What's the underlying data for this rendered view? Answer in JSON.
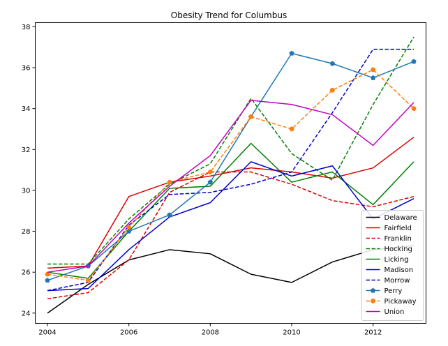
{
  "chart_data": {
    "type": "line",
    "title": "Obesity Trend for Columbus",
    "xlabel": "",
    "ylabel": "",
    "xlim": [
      2003.7,
      2013.3
    ],
    "ylim": [
      23.5,
      38.2
    ],
    "x_ticks": [
      2004,
      2006,
      2008,
      2010,
      2012
    ],
    "y_ticks": [
      24,
      26,
      28,
      30,
      32,
      34,
      36,
      38
    ],
    "grid": false,
    "legend_position": "lower-right",
    "x": [
      2004,
      2005,
      2006,
      2007,
      2008,
      2009,
      2010,
      2011,
      2012,
      2013
    ],
    "series": [
      {
        "name": "Delaware",
        "color": "#000000",
        "dash": "solid",
        "marker": "none",
        "values": [
          24.0,
          25.4,
          26.6,
          27.1,
          26.9,
          25.9,
          25.5,
          26.5,
          27.1,
          27.3
        ]
      },
      {
        "name": "Fairfield",
        "color": "#dd0000",
        "dash": "solid",
        "marker": "none",
        "values": [
          26.2,
          26.3,
          29.7,
          30.4,
          30.7,
          31.1,
          30.9,
          30.6,
          31.1,
          32.6
        ]
      },
      {
        "name": "Franklin",
        "color": "#dd0000",
        "dash": "dashed",
        "marker": "none",
        "values": [
          24.7,
          25.0,
          26.6,
          29.9,
          30.9,
          30.9,
          30.3,
          29.5,
          29.2,
          29.7
        ]
      },
      {
        "name": "Hocking",
        "color": "#008000",
        "dash": "dashed",
        "marker": "none",
        "values": [
          26.4,
          26.4,
          28.6,
          30.3,
          31.3,
          34.5,
          31.8,
          30.5,
          34.2,
          37.5
        ]
      },
      {
        "name": "Licking",
        "color": "#008000",
        "dash": "solid",
        "marker": "none",
        "values": [
          26.0,
          25.7,
          28.0,
          30.1,
          30.2,
          32.3,
          30.4,
          30.9,
          29.3,
          31.4
        ]
      },
      {
        "name": "Madison",
        "color": "#0000cc",
        "dash": "solid",
        "marker": "none",
        "values": [
          25.1,
          25.2,
          27.1,
          28.7,
          29.4,
          31.4,
          30.7,
          31.2,
          28.6,
          29.6
        ]
      },
      {
        "name": "Morrow",
        "color": "#0000cc",
        "dash": "dashed",
        "marker": "none",
        "values": [
          25.1,
          25.5,
          28.3,
          29.8,
          29.9,
          30.3,
          30.9,
          33.8,
          36.9,
          36.9
        ]
      },
      {
        "name": "Perry",
        "color": "#1f77b4",
        "dash": "solid",
        "marker": "pentagon",
        "values": [
          25.6,
          26.3,
          28.0,
          28.8,
          30.4,
          33.6,
          36.7,
          36.2,
          35.5,
          36.3
        ]
      },
      {
        "name": "Pickaway",
        "color": "#ff7f0e",
        "dash": "dashed",
        "marker": "circle",
        "values": [
          25.9,
          25.6,
          28.2,
          30.4,
          30.9,
          33.6,
          33.0,
          34.9,
          35.9,
          34.0
        ]
      },
      {
        "name": "Union",
        "color": "#bf00bf",
        "dash": "solid",
        "marker": "none",
        "values": [
          26.0,
          26.3,
          28.4,
          30.2,
          31.7,
          34.4,
          34.2,
          33.7,
          32.2,
          34.3
        ]
      }
    ]
  }
}
